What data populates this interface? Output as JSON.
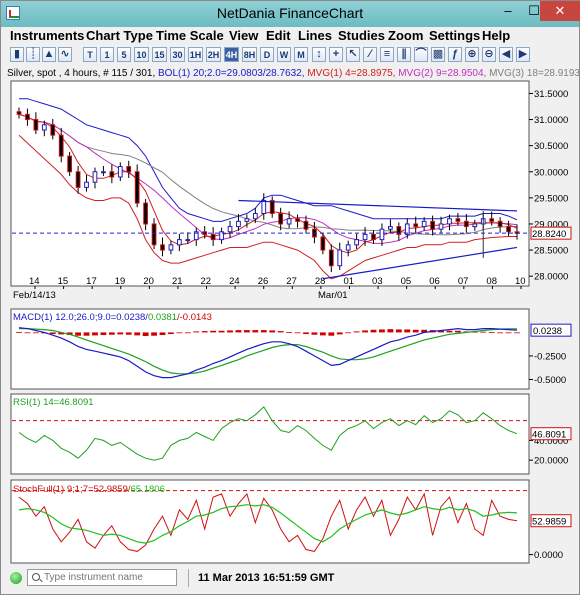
{
  "window": {
    "title": "NetDania FinanceChart",
    "min_glyph": "–",
    "max_glyph": "☐",
    "close_glyph": "✕"
  },
  "menu": [
    "Instruments",
    "Chart Type",
    "Time Scale",
    "View",
    "Edit",
    "Lines",
    "Studies",
    "Zoom",
    "Settings",
    "Help"
  ],
  "toolbar": {
    "buttons": [
      "T",
      "1",
      "5",
      "10",
      "15",
      "30",
      "1H",
      "2H",
      "4H",
      "8H",
      "D",
      "W",
      "M"
    ],
    "active": "4H"
  },
  "status_line": {
    "instrument": "Silver, spot , 4 hours, # 115 / 301, ",
    "bol": "BOL(1) 20;2.0=29.0803/28.7632, ",
    "mvg1": "MVG(1) 4=28.8975, ",
    "mvg2": "MVG(2) 9=28.9504, ",
    "mvg3": "MVG(3) 18=28.9193"
  },
  "macd_label": {
    "main": "MACD(1) 12.0;26.0;9.0=0.0238/",
    "signal": "0.0381",
    "hist": "/-0.0143"
  },
  "rsi_label": "RSI(1) 14=46.8091",
  "stoch_label": {
    "main": "StochFull(1) 9;1;7=52.9859/",
    "d": "65.1806"
  },
  "statusbar": {
    "search_placeholder": "Type instrument name",
    "datetime": "11 Mar 2013 16:51:59 GMT"
  },
  "colors": {
    "price_up": "#1e1ebe",
    "price_down": "#d01010",
    "bollinger": "#1a1ac8",
    "mvg1": "#d02020",
    "mvg2": "#c030c0",
    "mvg3": "#808080",
    "macd": "#1a1ac8",
    "signal": "#20a020",
    "hist": "#d00000",
    "rsi": "#20a020",
    "stoch_k": "#d01010",
    "stoch_d": "#20c020",
    "crosshair": "#2020d0",
    "ref_line": "#d01010"
  },
  "chart_data": [
    {
      "type": "candlestick",
      "title": "Silver, spot, 4 hours",
      "x_labels": [
        "14",
        "15",
        "17",
        "19",
        "20",
        "21",
        "22",
        "24",
        "26",
        "27",
        "28",
        "01",
        "03",
        "05",
        "06",
        "07",
        "08",
        "10"
      ],
      "month_labels": [
        "Feb/14/13",
        "Mar/01"
      ],
      "y_ticks": [
        28.0,
        28.5,
        29.0,
        29.5,
        30.0,
        30.5,
        31.0,
        31.5
      ],
      "ylim": [
        27.85,
        31.7
      ],
      "last_price": 28.824,
      "last_price_label": "28.8240",
      "close": [
        31.1,
        31.0,
        30.8,
        30.9,
        30.7,
        30.3,
        30.0,
        29.7,
        29.8,
        30.0,
        30.0,
        29.9,
        30.1,
        30.0,
        29.4,
        29.0,
        28.6,
        28.5,
        28.6,
        28.7,
        28.7,
        28.85,
        28.8,
        28.7,
        28.85,
        28.95,
        29.05,
        29.1,
        29.2,
        29.45,
        29.2,
        29.0,
        29.1,
        29.05,
        28.9,
        28.75,
        28.5,
        28.2,
        28.5,
        28.6,
        28.7,
        28.8,
        28.7,
        28.9,
        28.95,
        28.8,
        29.0,
        28.95,
        29.05,
        28.9,
        29.0,
        29.1,
        29.05,
        28.95,
        29.0,
        29.1,
        29.05,
        28.95,
        28.85,
        28.82
      ],
      "bollinger": {
        "upper": [
          31.4,
          31.4,
          31.35,
          31.3,
          31.25,
          31.2,
          31.1,
          31.0,
          30.9,
          30.85,
          30.8,
          30.75,
          30.7,
          30.65,
          30.5,
          30.3,
          30.0,
          29.7,
          29.5,
          29.3,
          29.2,
          29.15,
          29.1,
          29.05,
          29.05,
          29.1,
          29.15,
          29.2,
          29.3,
          29.5,
          29.55,
          29.55,
          29.5,
          29.45,
          29.4,
          29.35,
          29.35,
          29.35,
          29.3,
          29.25,
          29.2,
          29.15,
          29.1,
          29.1,
          29.1,
          29.1,
          29.1,
          29.1,
          29.1,
          29.1,
          29.1,
          29.15,
          29.15,
          29.15,
          29.15,
          29.2,
          29.2,
          29.2,
          29.15,
          29.08
        ],
        "lower": [
          30.7,
          30.55,
          30.4,
          30.25,
          30.1,
          29.95,
          29.75,
          29.6,
          29.5,
          29.45,
          29.45,
          29.5,
          29.5,
          29.4,
          29.1,
          28.7,
          28.45,
          28.3,
          28.25,
          28.25,
          28.3,
          28.35,
          28.4,
          28.45,
          28.5,
          28.55,
          28.55,
          28.55,
          28.6,
          28.65,
          28.65,
          28.6,
          28.55,
          28.5,
          28.4,
          28.3,
          28.1,
          27.95,
          28.0,
          28.1,
          28.2,
          28.3,
          28.35,
          28.4,
          28.45,
          28.5,
          28.55,
          28.55,
          28.6,
          28.6,
          28.6,
          28.65,
          28.65,
          28.65,
          28.7,
          28.72,
          28.74,
          28.75,
          28.76,
          28.76
        ]
      },
      "trendlines": [
        {
          "from": [
            26,
            29.45
          ],
          "to": [
            59,
            29.25
          ]
        },
        {
          "from": [
            36,
            27.95
          ],
          "to": [
            59,
            28.55
          ]
        }
      ]
    },
    {
      "type": "line",
      "title": "MACD(1) 12.0;26.0;9.0",
      "y_ticks": [
        -0.5,
        -0.25
      ],
      "ylim": [
        -0.58,
        0.1
      ],
      "last_value_label": "0.0238",
      "macd": [
        0.05,
        0.04,
        0.02,
        0.0,
        -0.03,
        -0.06,
        -0.1,
        -0.15,
        -0.18,
        -0.2,
        -0.22,
        -0.24,
        -0.26,
        -0.3,
        -0.36,
        -0.42,
        -0.46,
        -0.48,
        -0.48,
        -0.46,
        -0.44,
        -0.4,
        -0.37,
        -0.33,
        -0.3,
        -0.26,
        -0.22,
        -0.18,
        -0.15,
        -0.12,
        -0.1,
        -0.1,
        -0.12,
        -0.15,
        -0.2,
        -0.25,
        -0.3,
        -0.35,
        -0.34,
        -0.3,
        -0.26,
        -0.22,
        -0.18,
        -0.14,
        -0.1,
        -0.08,
        -0.05,
        -0.03,
        0.0,
        0.01,
        0.02,
        0.03,
        0.04,
        0.03,
        0.03,
        0.04,
        0.04,
        0.035,
        0.03,
        0.024
      ],
      "signal": [
        0.04,
        0.04,
        0.035,
        0.03,
        0.02,
        0.0,
        -0.02,
        -0.05,
        -0.08,
        -0.11,
        -0.14,
        -0.17,
        -0.2,
        -0.23,
        -0.27,
        -0.31,
        -0.36,
        -0.4,
        -0.43,
        -0.44,
        -0.44,
        -0.43,
        -0.41,
        -0.38,
        -0.35,
        -0.32,
        -0.29,
        -0.25,
        -0.22,
        -0.19,
        -0.16,
        -0.14,
        -0.13,
        -0.13,
        -0.15,
        -0.18,
        -0.21,
        -0.25,
        -0.28,
        -0.29,
        -0.29,
        -0.28,
        -0.26,
        -0.23,
        -0.2,
        -0.17,
        -0.14,
        -0.11,
        -0.08,
        -0.06,
        -0.04,
        -0.02,
        -0.01,
        0.0,
        0.01,
        0.02,
        0.03,
        0.035,
        0.038,
        0.038
      ],
      "hist": [
        0.01,
        0.0,
        -0.015,
        -0.03,
        -0.05,
        -0.06,
        -0.08,
        -0.1,
        -0.1,
        -0.09,
        -0.08,
        -0.07,
        -0.06,
        -0.07,
        -0.09,
        -0.11,
        -0.1,
        -0.08,
        -0.05,
        -0.02,
        0.0,
        0.03,
        0.04,
        0.05,
        0.05,
        0.06,
        0.07,
        0.07,
        0.07,
        0.07,
        0.06,
        0.04,
        0.01,
        -0.02,
        -0.05,
        -0.07,
        -0.09,
        -0.1,
        -0.06,
        -0.01,
        0.03,
        0.06,
        0.08,
        0.09,
        0.1,
        0.09,
        0.09,
        0.08,
        0.08,
        0.07,
        0.06,
        0.05,
        0.05,
        0.03,
        0.02,
        0.02,
        0.01,
        0.0,
        -0.008,
        -0.014
      ]
    },
    {
      "type": "line",
      "title": "RSI(1) 14",
      "y_ticks": [
        20.0,
        40.0
      ],
      "ylim": [
        8,
        85
      ],
      "reference_line": 60,
      "last_value_label": "46.8091",
      "values": [
        48,
        42,
        38,
        45,
        40,
        32,
        28,
        22,
        30,
        42,
        40,
        35,
        38,
        32,
        26,
        22,
        20,
        22,
        35,
        40,
        42,
        48,
        44,
        40,
        52,
        58,
        62,
        60,
        66,
        74,
        60,
        50,
        48,
        55,
        50,
        42,
        35,
        30,
        45,
        52,
        55,
        60,
        52,
        58,
        62,
        55,
        60,
        56,
        65,
        58,
        62,
        70,
        66,
        58,
        60,
        68,
        62,
        55,
        50,
        46.8
      ]
    },
    {
      "type": "line",
      "title": "StochFull(1) 9;1;7",
      "y_ticks": [
        0.0
      ],
      "ylim": [
        -10,
        112
      ],
      "reference_line": 100,
      "last_value_label": "52.9859",
      "k": [
        90,
        80,
        60,
        75,
        40,
        20,
        35,
        55,
        20,
        10,
        30,
        45,
        20,
        8,
        5,
        15,
        40,
        60,
        30,
        70,
        55,
        85,
        40,
        90,
        95,
        60,
        80,
        95,
        50,
        88,
        70,
        40,
        20,
        30,
        8,
        5,
        25,
        60,
        85,
        40,
        70,
        90,
        60,
        85,
        30,
        55,
        90,
        70,
        95,
        30,
        75,
        90,
        50,
        80,
        40,
        30,
        85,
        60,
        55,
        53
      ],
      "d": [
        70,
        72,
        70,
        66,
        58,
        48,
        42,
        40,
        38,
        34,
        30,
        32,
        30,
        25,
        20,
        18,
        22,
        30,
        36,
        45,
        52,
        60,
        62,
        66,
        72,
        75,
        76,
        78,
        76,
        78,
        74,
        65,
        55,
        45,
        35,
        25,
        20,
        28,
        40,
        48,
        55,
        62,
        66,
        70,
        65,
        62,
        65,
        70,
        75,
        72,
        70,
        74,
        70,
        72,
        68,
        60,
        62,
        65,
        66,
        65.18
      ]
    }
  ]
}
